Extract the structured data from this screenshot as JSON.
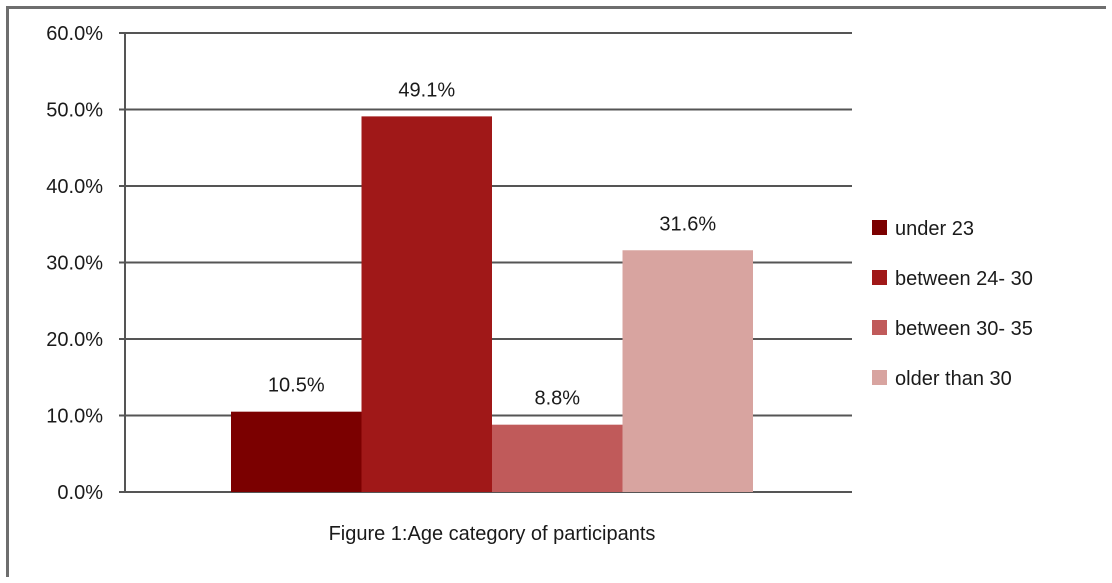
{
  "chart_data": {
    "type": "bar",
    "categories": [
      "under 23",
      "between 24- 30",
      "between 30- 35",
      "older than 30"
    ],
    "values": [
      10.5,
      49.1,
      8.8,
      31.6
    ],
    "value_labels": [
      "10.5%",
      "49.1%",
      "8.8%",
      "31.6%"
    ],
    "colors": [
      "#7b0000",
      "#a01818",
      "#c05a5a",
      "#d8a4a0"
    ],
    "ylim": [
      0,
      60
    ],
    "yticks": [
      0,
      10,
      20,
      30,
      40,
      50,
      60
    ],
    "ytick_labels": [
      "0.0%",
      "10.0%",
      "20.0%",
      "30.0%",
      "40.0%",
      "50.0%",
      "60.0%"
    ],
    "grid": true,
    "legend_position": "right",
    "title": "",
    "xlabel": "",
    "ylabel": "",
    "caption": "Figure 1:Age category of participants"
  }
}
